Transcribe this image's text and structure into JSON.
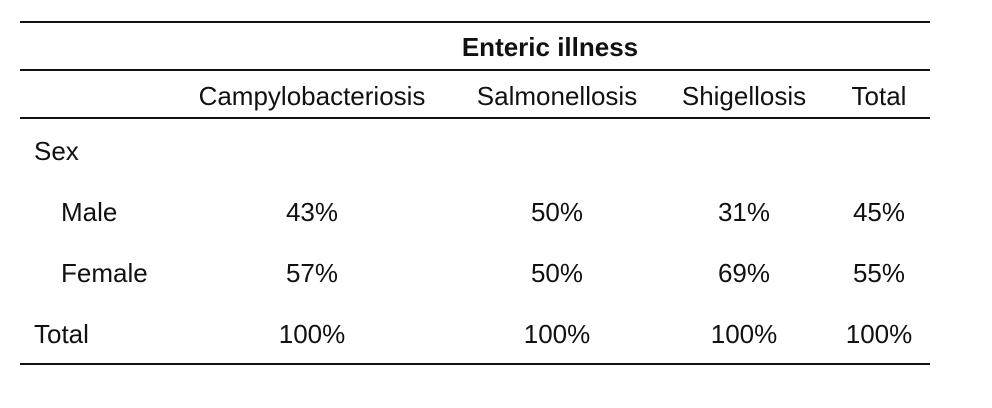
{
  "table": {
    "spanner": "Enteric illness",
    "columns": [
      "Campylobacteriosis",
      "Salmonellosis",
      "Shigellosis",
      "Total"
    ],
    "sections": [
      {
        "label": "Sex",
        "rows": [
          {
            "label": "Male",
            "cells": [
              "43%",
              "50%",
              "31%",
              "45%"
            ]
          },
          {
            "label": "Female",
            "cells": [
              "57%",
              "50%",
              "69%",
              "55%"
            ]
          }
        ]
      }
    ],
    "total": {
      "label": "Total",
      "cells": [
        "100%",
        "100%",
        "100%",
        "100%"
      ]
    }
  }
}
